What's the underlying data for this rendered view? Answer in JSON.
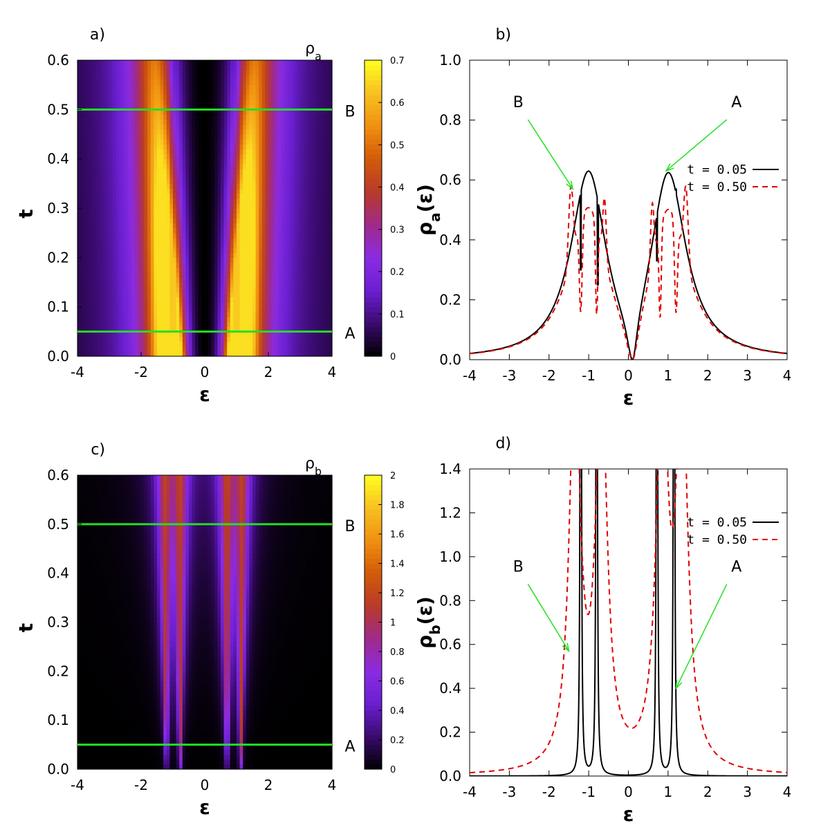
{
  "colors": {
    "green_line": "#22e022",
    "black_curve": "#000000",
    "red_curve": "#e00000",
    "arrow": "#22e022",
    "colormap": [
      "#000000",
      "#3a0a6e",
      "#6a1fd0",
      "#8a2be2",
      "#a02a8a",
      "#b83a2a",
      "#d25a0a",
      "#f09010",
      "#f8c020",
      "#ffff20"
    ]
  },
  "chart_data": [
    {
      "panel": "a)",
      "type": "heatmap",
      "colorbar_title": "ρa",
      "xlabel": "ε",
      "ylabel": "t",
      "xlim": [
        -4,
        4
      ],
      "ylim": [
        0,
        0.6
      ],
      "xticks": [
        "-4",
        "-2",
        "0",
        "2",
        "4"
      ],
      "yticks": [
        "0.0",
        "0.1",
        "0.2",
        "0.3",
        "0.4",
        "0.5",
        "0.6"
      ],
      "colorbar_ticks": [
        "0",
        "0.1",
        "0.2",
        "0.3",
        "0.4",
        "0.5",
        "0.6",
        "0.7"
      ],
      "colorbar_range": [
        0,
        0.7
      ],
      "hlines": [
        {
          "y": 0.5,
          "label": "B"
        },
        {
          "y": 0.05,
          "label": "A"
        }
      ]
    },
    {
      "panel": "b)",
      "type": "line",
      "xlabel": "ε",
      "ylabel": "ρa(ε)",
      "xlim": [
        -4,
        4
      ],
      "ylim": [
        0,
        1.0
      ],
      "xticks": [
        "-4",
        "-3",
        "-2",
        "-1",
        "0",
        "1",
        "2",
        "3",
        "4"
      ],
      "yticks": [
        "0.0",
        "0.2",
        "0.4",
        "0.6",
        "0.8",
        "1.0"
      ],
      "legend_position": "top-right",
      "series": [
        {
          "name": "t = 0.05",
          "style": "solid",
          "color": "#000000"
        },
        {
          "name": "t = 0.50",
          "style": "dashed",
          "color": "#e00000"
        }
      ],
      "annotations": [
        {
          "text": "B",
          "text_at": [
            -2.6,
            0.82
          ],
          "arrow_to": [
            -1.4,
            0.57
          ]
        },
        {
          "text": "A",
          "text_at": [
            2.55,
            0.82
          ],
          "arrow_to": [
            0.95,
            0.63
          ]
        }
      ]
    },
    {
      "panel": "c)",
      "type": "heatmap",
      "colorbar_title": "ρb",
      "xlabel": "ε",
      "ylabel": "t",
      "xlim": [
        -4,
        4
      ],
      "ylim": [
        0,
        0.6
      ],
      "xticks": [
        "-4",
        "-2",
        "0",
        "2",
        "4"
      ],
      "yticks": [
        "0.0",
        "0.1",
        "0.2",
        "0.3",
        "0.4",
        "0.5",
        "0.6"
      ],
      "colorbar_ticks": [
        "0",
        "0.2",
        "0.4",
        "0.6",
        "0.8",
        "1",
        "1.2",
        "1.4",
        "1.6",
        "1.8",
        "2"
      ],
      "colorbar_range": [
        0,
        2
      ],
      "hlines": [
        {
          "y": 0.5,
          "label": "B"
        },
        {
          "y": 0.05,
          "label": "A"
        }
      ]
    },
    {
      "panel": "d)",
      "type": "line",
      "xlabel": "ε",
      "ylabel": "ρb(ε)",
      "xlim": [
        -4,
        4
      ],
      "ylim": [
        0,
        1.4
      ],
      "xticks": [
        "-4",
        "-3",
        "-2",
        "-1",
        "0",
        "1",
        "2",
        "3",
        "4"
      ],
      "yticks": [
        "0.0",
        "0.2",
        "0.4",
        "0.6",
        "0.8",
        "1.0",
        "1.2",
        "1.4"
      ],
      "legend_position": "top-right",
      "series": [
        {
          "name": "t = 0.05",
          "style": "solid",
          "color": "#000000"
        },
        {
          "name": "t = 0.50",
          "style": "dashed",
          "color": "#e00000"
        }
      ],
      "annotations": [
        {
          "text": "B",
          "text_at": [
            -2.6,
            0.9
          ],
          "arrow_to": [
            -1.5,
            0.57
          ]
        },
        {
          "text": "A",
          "text_at": [
            2.55,
            0.9
          ],
          "arrow_to": [
            1.2,
            0.4
          ]
        }
      ]
    }
  ]
}
